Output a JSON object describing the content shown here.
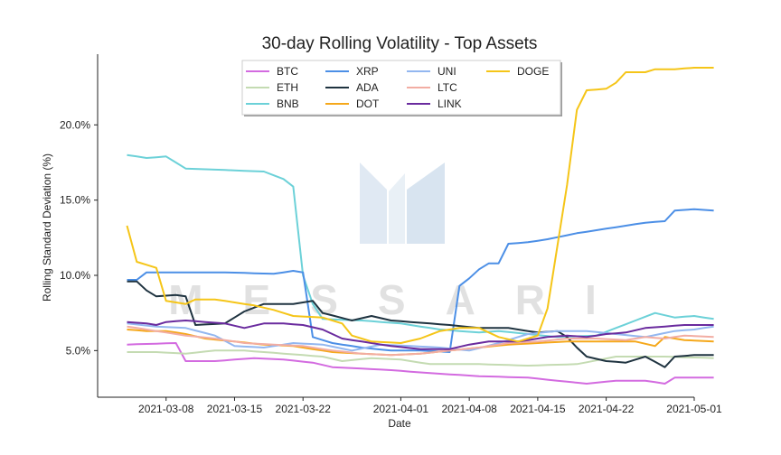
{
  "chart_data": {
    "type": "line",
    "title": "30-day Rolling Volatility - Top Assets",
    "xlabel": "Date",
    "ylabel": "Rolling Standard Deviation (%)",
    "watermark": "MESSARI",
    "x_start": "2021-03-04",
    "x_end": "2021-04-29",
    "xlim": [
      "2021-03-01",
      "2021-05-01"
    ],
    "ylim": [
      1.9,
      24.7
    ],
    "x_ticks": [
      "2021-03-08",
      "2021-03-15",
      "2021-03-22",
      "2021-04-01",
      "2021-04-08",
      "2021-04-15",
      "2021-04-22",
      "2021-05-01"
    ],
    "y_ticks": [
      5.0,
      10.0,
      15.0,
      20.0
    ],
    "y_tick_labels": [
      "5.0%",
      "10.0%",
      "15.0%",
      "20.0%"
    ],
    "grid": false,
    "legend_position": "top-center",
    "series": [
      {
        "name": "BTC",
        "color": "#d36be0",
        "keys": [
          [
            0,
            5.4
          ],
          [
            5,
            5.5
          ],
          [
            6,
            4.3
          ],
          [
            9,
            4.3
          ],
          [
            13,
            4.5
          ],
          [
            16,
            4.4
          ],
          [
            19,
            4.2
          ],
          [
            21,
            3.9
          ],
          [
            24,
            3.8
          ],
          [
            27,
            3.7
          ],
          [
            31,
            3.5
          ],
          [
            36,
            3.3
          ],
          [
            41,
            3.2
          ],
          [
            44,
            3.0
          ],
          [
            47,
            2.8
          ],
          [
            50,
            3.0
          ],
          [
            53,
            3.0
          ],
          [
            55,
            2.8
          ],
          [
            56,
            3.2
          ],
          [
            60,
            3.2
          ]
        ]
      },
      {
        "name": "ETH",
        "color": "#c4dbb2",
        "keys": [
          [
            0,
            4.9
          ],
          [
            3,
            4.9
          ],
          [
            6,
            4.8
          ],
          [
            9,
            5.0
          ],
          [
            12,
            5.0
          ],
          [
            16,
            4.8
          ],
          [
            20,
            4.6
          ],
          [
            22,
            4.3
          ],
          [
            25,
            4.5
          ],
          [
            28,
            4.4
          ],
          [
            31,
            4.1
          ],
          [
            36,
            4.1
          ],
          [
            41,
            4.0
          ],
          [
            46,
            4.1
          ],
          [
            50,
            4.6
          ],
          [
            55,
            4.6
          ],
          [
            60,
            4.5
          ]
        ]
      },
      {
        "name": "BNB",
        "color": "#6cd1d8",
        "keys": [
          [
            0,
            18.0
          ],
          [
            2,
            17.8
          ],
          [
            4,
            17.9
          ],
          [
            6,
            17.1
          ],
          [
            10,
            17.0
          ],
          [
            14,
            16.9
          ],
          [
            16,
            16.4
          ],
          [
            17,
            15.9
          ],
          [
            18,
            10.0
          ],
          [
            19,
            8.1
          ],
          [
            20,
            7.1
          ],
          [
            24,
            7.0
          ],
          [
            28,
            6.8
          ],
          [
            32,
            6.4
          ],
          [
            36,
            6.2
          ],
          [
            38,
            6.3
          ],
          [
            41,
            6.1
          ],
          [
            44,
            5.9
          ],
          [
            48,
            6.0
          ],
          [
            50,
            6.5
          ],
          [
            52,
            7.0
          ],
          [
            54,
            7.5
          ],
          [
            56,
            7.2
          ],
          [
            58,
            7.3
          ],
          [
            60,
            7.1
          ]
        ]
      },
      {
        "name": "XRP",
        "color": "#4c8fe6",
        "keys": [
          [
            0,
            9.7
          ],
          [
            1,
            9.7
          ],
          [
            2,
            10.2
          ],
          [
            5,
            10.2
          ],
          [
            10,
            10.2
          ],
          [
            15,
            10.1
          ],
          [
            17,
            10.3
          ],
          [
            18,
            10.2
          ],
          [
            19,
            5.9
          ],
          [
            21,
            5.5
          ],
          [
            24,
            5.2
          ],
          [
            27,
            5.0
          ],
          [
            30,
            5.0
          ],
          [
            33,
            4.9
          ],
          [
            34,
            9.3
          ],
          [
            35,
            9.8
          ],
          [
            36,
            10.4
          ],
          [
            37,
            10.8
          ],
          [
            38,
            10.8
          ],
          [
            39,
            12.1
          ],
          [
            41,
            12.2
          ],
          [
            43,
            12.4
          ],
          [
            46,
            12.8
          ],
          [
            48,
            13.0
          ],
          [
            50,
            13.2
          ],
          [
            53,
            13.5
          ],
          [
            55,
            13.6
          ],
          [
            56,
            14.3
          ],
          [
            58,
            14.4
          ],
          [
            60,
            14.3
          ]
        ]
      },
      {
        "name": "ADA",
        "color": "#1f3340",
        "keys": [
          [
            0,
            9.6
          ],
          [
            1,
            9.6
          ],
          [
            2,
            9.0
          ],
          [
            3,
            8.6
          ],
          [
            5,
            8.7
          ],
          [
            6,
            8.6
          ],
          [
            7,
            6.7
          ],
          [
            10,
            6.8
          ],
          [
            12,
            7.6
          ],
          [
            14,
            8.1
          ],
          [
            17,
            8.1
          ],
          [
            19,
            8.3
          ],
          [
            20,
            7.5
          ],
          [
            23,
            7.0
          ],
          [
            25,
            7.3
          ],
          [
            27,
            7.0
          ],
          [
            29,
            6.9
          ],
          [
            33,
            6.7
          ],
          [
            36,
            6.5
          ],
          [
            39,
            6.5
          ],
          [
            42,
            6.2
          ],
          [
            44,
            6.3
          ],
          [
            45,
            5.9
          ],
          [
            46,
            5.2
          ],
          [
            47,
            4.6
          ],
          [
            49,
            4.3
          ],
          [
            51,
            4.2
          ],
          [
            53,
            4.6
          ],
          [
            55,
            3.9
          ],
          [
            56,
            4.6
          ],
          [
            58,
            4.7
          ],
          [
            60,
            4.7
          ]
        ]
      },
      {
        "name": "DOT",
        "color": "#f5a81b",
        "keys": [
          [
            0,
            6.4
          ],
          [
            2,
            6.3
          ],
          [
            3,
            6.3
          ],
          [
            4,
            6.3
          ],
          [
            6,
            6.1
          ],
          [
            8,
            5.8
          ],
          [
            11,
            5.6
          ],
          [
            14,
            5.4
          ],
          [
            17,
            5.3
          ],
          [
            19,
            5.1
          ],
          [
            21,
            4.9
          ],
          [
            24,
            4.8
          ],
          [
            27,
            4.7
          ],
          [
            30,
            4.8
          ],
          [
            33,
            5.0
          ],
          [
            36,
            5.2
          ],
          [
            39,
            5.4
          ],
          [
            42,
            5.5
          ],
          [
            45,
            5.6
          ],
          [
            48,
            5.6
          ],
          [
            52,
            5.6
          ],
          [
            54,
            5.3
          ],
          [
            55,
            5.9
          ],
          [
            57,
            5.7
          ],
          [
            60,
            5.6
          ]
        ]
      },
      {
        "name": "UNI",
        "color": "#93b7f0",
        "keys": [
          [
            0,
            6.8
          ],
          [
            3,
            6.6
          ],
          [
            6,
            6.5
          ],
          [
            9,
            6.0
          ],
          [
            11,
            5.3
          ],
          [
            14,
            5.2
          ],
          [
            17,
            5.5
          ],
          [
            20,
            5.4
          ],
          [
            23,
            5.0
          ],
          [
            26,
            5.4
          ],
          [
            29,
            5.3
          ],
          [
            32,
            5.2
          ],
          [
            35,
            5.0
          ],
          [
            38,
            5.5
          ],
          [
            41,
            6.1
          ],
          [
            44,
            6.3
          ],
          [
            47,
            6.3
          ],
          [
            50,
            6.1
          ],
          [
            53,
            5.9
          ],
          [
            56,
            6.3
          ],
          [
            58,
            6.4
          ],
          [
            60,
            6.6
          ]
        ]
      },
      {
        "name": "LTC",
        "color": "#f2ada3",
        "keys": [
          [
            0,
            6.6
          ],
          [
            3,
            6.3
          ],
          [
            6,
            6.0
          ],
          [
            9,
            5.8
          ],
          [
            12,
            5.5
          ],
          [
            15,
            5.4
          ],
          [
            18,
            5.3
          ],
          [
            21,
            5.0
          ],
          [
            24,
            4.8
          ],
          [
            27,
            4.7
          ],
          [
            30,
            4.8
          ],
          [
            33,
            5.0
          ],
          [
            36,
            5.2
          ],
          [
            39,
            5.5
          ],
          [
            42,
            5.6
          ],
          [
            45,
            5.8
          ],
          [
            48,
            5.8
          ],
          [
            51,
            5.7
          ],
          [
            53,
            5.9
          ],
          [
            55,
            5.8
          ],
          [
            57,
            6.0
          ],
          [
            60,
            5.9
          ]
        ]
      },
      {
        "name": "LINK",
        "color": "#6a2b9e",
        "keys": [
          [
            0,
            6.9
          ],
          [
            2,
            6.8
          ],
          [
            3,
            6.7
          ],
          [
            4,
            6.9
          ],
          [
            6,
            7.0
          ],
          [
            8,
            6.9
          ],
          [
            10,
            6.8
          ],
          [
            12,
            6.5
          ],
          [
            14,
            6.8
          ],
          [
            16,
            6.8
          ],
          [
            18,
            6.7
          ],
          [
            20,
            6.4
          ],
          [
            22,
            5.8
          ],
          [
            25,
            5.5
          ],
          [
            27,
            5.3
          ],
          [
            30,
            5.1
          ],
          [
            33,
            5.1
          ],
          [
            35,
            5.4
          ],
          [
            37,
            5.6
          ],
          [
            40,
            5.6
          ],
          [
            43,
            5.9
          ],
          [
            45,
            6.0
          ],
          [
            47,
            5.9
          ],
          [
            49,
            6.1
          ],
          [
            51,
            6.2
          ],
          [
            53,
            6.5
          ],
          [
            55,
            6.6
          ],
          [
            57,
            6.7
          ],
          [
            60,
            6.7
          ]
        ]
      },
      {
        "name": "DOGE",
        "color": "#f5c518",
        "keys": [
          [
            0,
            13.3
          ],
          [
            1,
            10.9
          ],
          [
            2,
            10.7
          ],
          [
            3,
            10.5
          ],
          [
            4,
            8.3
          ],
          [
            6,
            8.1
          ],
          [
            7,
            8.4
          ],
          [
            9,
            8.4
          ],
          [
            11,
            8.2
          ],
          [
            13,
            8.0
          ],
          [
            15,
            7.7
          ],
          [
            17,
            7.3
          ],
          [
            20,
            7.2
          ],
          [
            22,
            6.8
          ],
          [
            23,
            6.0
          ],
          [
            25,
            5.6
          ],
          [
            28,
            5.5
          ],
          [
            30,
            5.8
          ],
          [
            32,
            6.3
          ],
          [
            34,
            6.5
          ],
          [
            36,
            6.5
          ],
          [
            38,
            5.9
          ],
          [
            40,
            5.6
          ],
          [
            42,
            6.0
          ],
          [
            43,
            7.8
          ],
          [
            45,
            16.0
          ],
          [
            46,
            21.0
          ],
          [
            47,
            22.3
          ],
          [
            49,
            22.4
          ],
          [
            50,
            22.8
          ],
          [
            51,
            23.5
          ],
          [
            53,
            23.5
          ],
          [
            54,
            23.7
          ],
          [
            56,
            23.7
          ],
          [
            58,
            23.8
          ],
          [
            60,
            23.8
          ]
        ]
      }
    ]
  }
}
